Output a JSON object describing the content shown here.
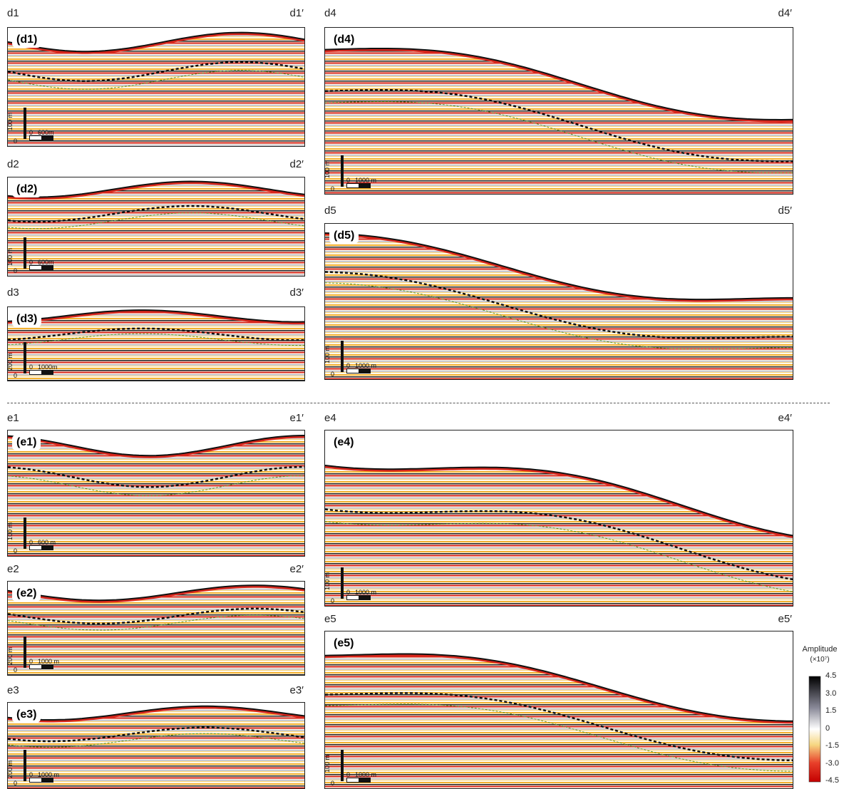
{
  "panels": [
    {
      "id": "d1",
      "left_label": "d1",
      "right_label": "d1′",
      "inner_label": "(d1)",
      "v_scale": "100 m",
      "v_zero": "0",
      "h_zero": "0",
      "h_scale": "600m"
    },
    {
      "id": "d2",
      "left_label": "d2",
      "right_label": "d2′",
      "inner_label": "(d2)",
      "v_scale": "100 m",
      "v_zero": "0",
      "h_zero": "0",
      "h_scale": "600m"
    },
    {
      "id": "d3",
      "left_label": "d3",
      "right_label": "d3′",
      "inner_label": "(d3)",
      "v_scale": "200 m",
      "v_zero": "0",
      "h_zero": "0",
      "h_scale": "1000m"
    },
    {
      "id": "d4",
      "left_label": "d4",
      "right_label": "d4′",
      "inner_label": "(d4)",
      "v_scale": "100 m",
      "v_zero": "0",
      "h_zero": "0",
      "h_scale": "1000 m"
    },
    {
      "id": "d5",
      "left_label": "d5",
      "right_label": "d5′",
      "inner_label": "(d5)",
      "v_scale": "100 m",
      "v_zero": "0",
      "h_zero": "0",
      "h_scale": "1000 m"
    },
    {
      "id": "e1",
      "left_label": "e1",
      "right_label": "e1′",
      "inner_label": "(e1)",
      "v_scale": "100 m",
      "v_zero": "0",
      "h_zero": "0",
      "h_scale": "600 m"
    },
    {
      "id": "e2",
      "left_label": "e2",
      "right_label": "e2′",
      "inner_label": "(e2)",
      "v_scale": "200 m",
      "v_zero": "0",
      "h_zero": "0",
      "h_scale": "1000 m"
    },
    {
      "id": "e3",
      "left_label": "e3",
      "right_label": "e3′",
      "inner_label": "(e3)",
      "v_scale": "200 m",
      "v_zero": "0",
      "h_zero": "0",
      "h_scale": "1000 m"
    },
    {
      "id": "e4",
      "left_label": "e4",
      "right_label": "e4′",
      "inner_label": "(e4)",
      "v_scale": "100 m",
      "v_zero": "0",
      "h_zero": "0",
      "h_scale": "1000 m"
    },
    {
      "id": "e5",
      "left_label": "e5",
      "right_label": "e5′",
      "inner_label": "(e5)",
      "v_scale": "100 m",
      "v_zero": "0",
      "h_zero": "0",
      "h_scale": "1000 m"
    }
  ],
  "colorbar": {
    "title": "Amplitude",
    "unit": "(×10⁷)",
    "ticks": [
      "4.5",
      "3.0",
      "1.5",
      "0",
      "-1.5",
      "-3.0",
      "-4.5"
    ]
  }
}
